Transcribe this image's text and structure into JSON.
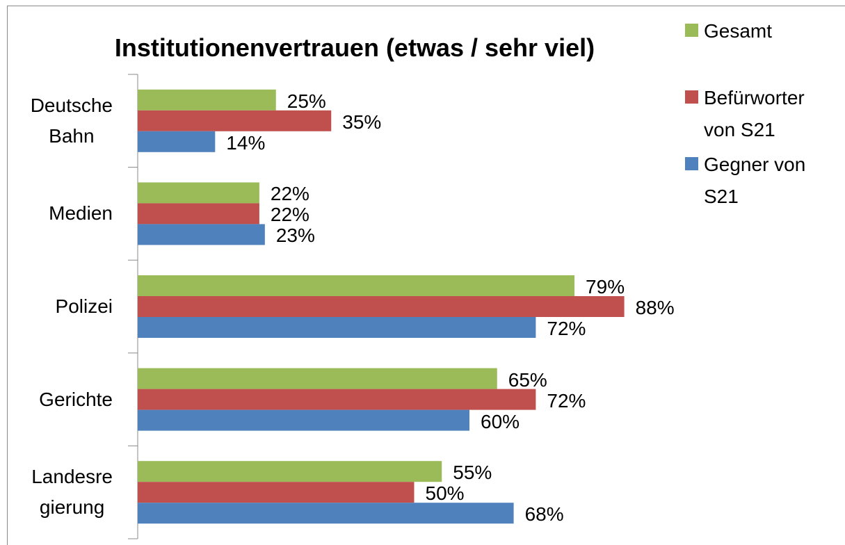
{
  "chart_data": {
    "type": "bar",
    "orientation": "horizontal",
    "title": "Institutionenvertrauen (etwas / sehr viel)",
    "categories": [
      "Deutsche\nBahn",
      "Medien",
      "Polizei",
      "Gerichte",
      "Landesre\ngierung"
    ],
    "series": [
      {
        "name": "Gesamt",
        "color": "#9bbb59",
        "values": [
          25,
          22,
          79,
          65,
          55
        ],
        "value_labels": [
          "25%",
          "22%",
          "79%",
          "65%",
          "55%"
        ]
      },
      {
        "name": "Befürworter\nvon S21",
        "color": "#c0504d",
        "values": [
          35,
          22,
          88,
          72,
          50
        ],
        "value_labels": [
          "35%",
          "22%",
          "88%",
          "72%",
          "50%"
        ]
      },
      {
        "name": "Gegner von\nS21",
        "color": "#4f81bd",
        "values": [
          14,
          23,
          72,
          60,
          68
        ],
        "value_labels": [
          "14%",
          "23%",
          "72%",
          "60%",
          "68%"
        ]
      }
    ],
    "legend": "right"
  }
}
